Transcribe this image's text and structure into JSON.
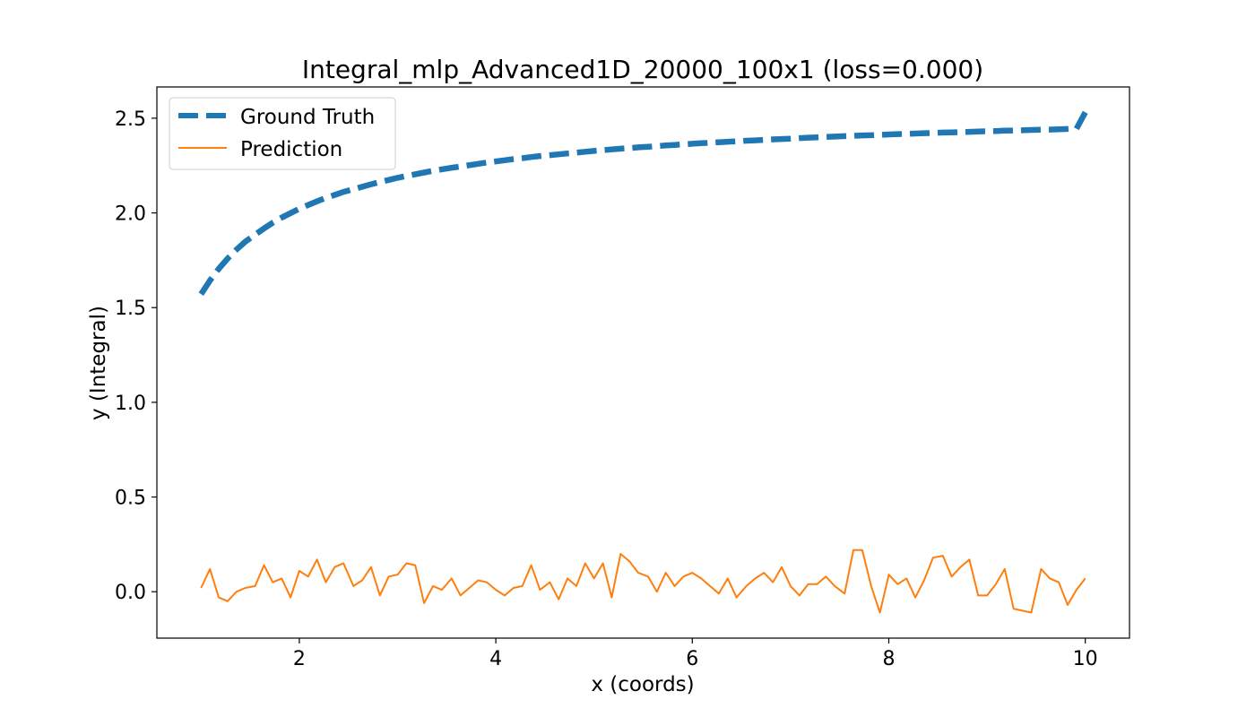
{
  "chart_data": {
    "type": "line",
    "title": "Integral_mlp_Advanced1D_20000_100x1 (loss=0.000)",
    "xlabel": "x (coords)",
    "ylabel": "y (Integral)",
    "xlim": [
      0.55,
      10.45
    ],
    "ylim": [
      -0.245,
      2.665
    ],
    "xticks": [
      2,
      4,
      6,
      8,
      10
    ],
    "xtick_labels": [
      "2",
      "4",
      "6",
      "8",
      "10"
    ],
    "yticks": [
      0.0,
      0.5,
      1.0,
      1.5,
      2.0,
      2.5
    ],
    "ytick_labels": [
      "0.0",
      "0.5",
      "1.0",
      "1.5",
      "2.0",
      "2.5"
    ],
    "grid": false,
    "legend": "upper left",
    "x": [
      1.0,
      1.09,
      1.18,
      1.27,
      1.36,
      1.45,
      1.55,
      1.64,
      1.73,
      1.82,
      1.91,
      2.0,
      2.09,
      2.18,
      2.27,
      2.36,
      2.45,
      2.55,
      2.64,
      2.73,
      2.82,
      2.91,
      3.0,
      3.09,
      3.18,
      3.27,
      3.36,
      3.45,
      3.55,
      3.64,
      3.73,
      3.82,
      3.91,
      4.0,
      4.09,
      4.18,
      4.27,
      4.36,
      4.45,
      4.55,
      4.64,
      4.73,
      4.82,
      4.91,
      5.0,
      5.09,
      5.18,
      5.27,
      5.36,
      5.45,
      5.55,
      5.64,
      5.73,
      5.82,
      5.91,
      6.0,
      6.09,
      6.18,
      6.27,
      6.36,
      6.45,
      6.55,
      6.64,
      6.73,
      6.82,
      6.91,
      7.0,
      7.09,
      7.18,
      7.27,
      7.36,
      7.45,
      7.55,
      7.64,
      7.73,
      7.82,
      7.91,
      8.0,
      8.09,
      8.18,
      8.27,
      8.36,
      8.45,
      8.55,
      8.64,
      8.73,
      8.82,
      8.91,
      9.0,
      9.09,
      9.18,
      9.27,
      9.36,
      9.45,
      9.55,
      9.64,
      9.73,
      9.82,
      9.91,
      10.0
    ],
    "series": [
      {
        "name": "Ground Truth",
        "style": "dashed",
        "color": "#1f77b4",
        "values": [
          1.571,
          1.643,
          1.705,
          1.759,
          1.806,
          1.848,
          1.885,
          1.918,
          1.948,
          1.975,
          1.999,
          2.022,
          2.042,
          2.061,
          2.079,
          2.095,
          2.111,
          2.125,
          2.138,
          2.151,
          2.163,
          2.174,
          2.185,
          2.195,
          2.204,
          2.213,
          2.222,
          2.23,
          2.238,
          2.245,
          2.252,
          2.259,
          2.266,
          2.272,
          2.278,
          2.284,
          2.289,
          2.295,
          2.3,
          2.305,
          2.309,
          2.314,
          2.318,
          2.323,
          2.327,
          2.331,
          2.335,
          2.339,
          2.342,
          2.346,
          2.349,
          2.352,
          2.356,
          2.359,
          2.362,
          2.365,
          2.368,
          2.37,
          2.373,
          2.376,
          2.378,
          2.381,
          2.383,
          2.386,
          2.388,
          2.39,
          2.392,
          2.395,
          2.397,
          2.399,
          2.401,
          2.403,
          2.405,
          2.407,
          2.409,
          2.41,
          2.412,
          2.414,
          2.416,
          2.417,
          2.419,
          2.421,
          2.422,
          2.424,
          2.425,
          2.427,
          2.428,
          2.43,
          2.431,
          2.432,
          2.434,
          2.435,
          2.436,
          2.438,
          2.439,
          2.44,
          2.441,
          2.443,
          2.444,
          2.531
        ]
      },
      {
        "name": "Prediction",
        "style": "solid",
        "color": "#ff7f0e",
        "values": [
          0.02,
          0.12,
          -0.03,
          -0.05,
          0.0,
          0.02,
          0.03,
          0.14,
          0.05,
          0.07,
          -0.03,
          0.11,
          0.08,
          0.17,
          0.05,
          0.13,
          0.15,
          0.03,
          0.06,
          0.13,
          -0.02,
          0.08,
          0.09,
          0.15,
          0.14,
          -0.06,
          0.03,
          0.01,
          0.07,
          -0.02,
          0.02,
          0.06,
          0.05,
          0.01,
          -0.02,
          0.02,
          0.03,
          0.14,
          0.01,
          0.05,
          -0.04,
          0.07,
          0.03,
          0.15,
          0.07,
          0.15,
          -0.03,
          0.2,
          0.16,
          0.1,
          0.08,
          0.0,
          0.1,
          0.03,
          0.08,
          0.1,
          0.07,
          0.03,
          -0.01,
          0.07,
          -0.03,
          0.03,
          0.07,
          0.1,
          0.05,
          0.13,
          0.03,
          -0.02,
          0.04,
          0.04,
          0.08,
          0.03,
          -0.01,
          0.22,
          0.22,
          0.03,
          -0.11,
          0.09,
          0.04,
          0.07,
          -0.03,
          0.06,
          0.18,
          0.19,
          0.08,
          0.13,
          0.17,
          -0.02,
          -0.02,
          0.04,
          0.12,
          -0.09,
          -0.1,
          -0.11,
          0.12,
          0.07,
          0.05,
          -0.07,
          0.01,
          0.07
        ]
      }
    ]
  }
}
